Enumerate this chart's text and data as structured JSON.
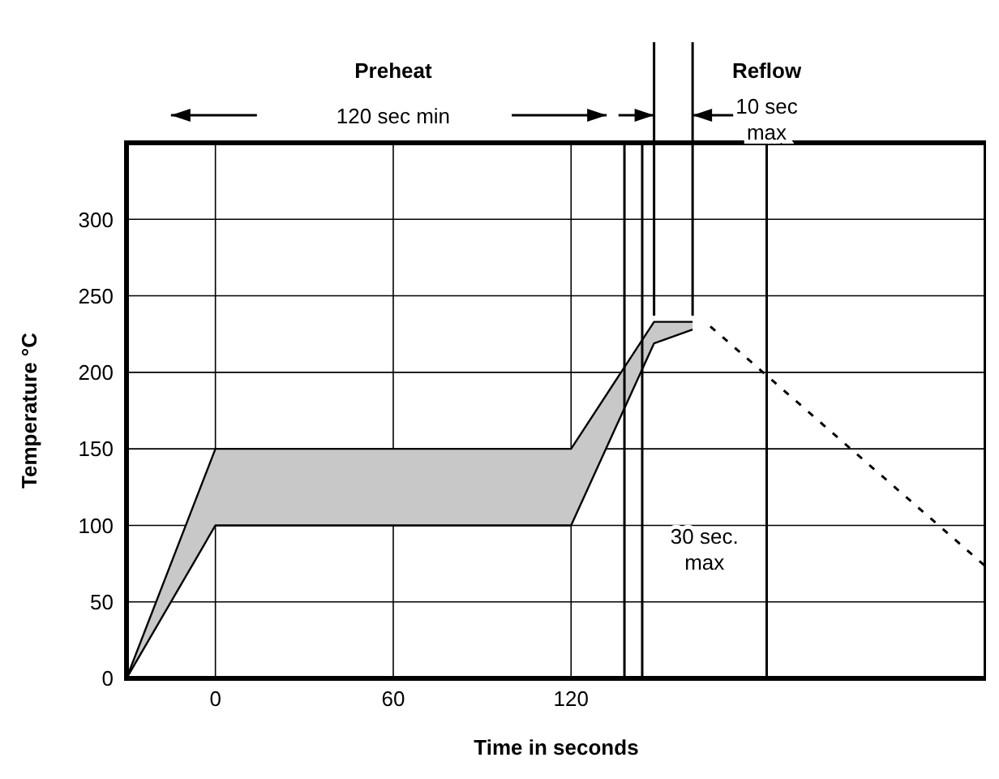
{
  "chart_data": {
    "type": "line",
    "xlabel": "Time in seconds",
    "ylabel": "Temperature °C",
    "annotations": [
      "Preheat",
      "120 sec min",
      "Reflow",
      "10 sec max",
      "30 sec. max"
    ],
    "series": [
      {
        "type": "line",
        "color": "#000000",
        "x": [
          -30,
          0,
          120,
          148,
          161
        ],
        "values": [
          0,
          100,
          100,
          219,
          228
        ]
      },
      {
        "color": "#000000",
        "x": [
          -30,
          0,
          120,
          148,
          161
        ],
        "values": [
          0,
          150,
          150,
          233,
          233
        ],
        "lower": [
          0,
          100,
          100,
          219,
          228
        ],
        "upper": [
          0,
          150,
          150,
          233,
          233
        ]
      },
      {
        "type": "line",
        "color": "#000000",
        "line_style": "dashed",
        "x": [
          167,
          260
        ],
        "values": [
          230,
          73
        ]
      }
    ],
    "ref_lines": [
      {
        "axis": "x",
        "value": 138
      },
      {
        "axis": "x",
        "value": 144
      },
      {
        "axis": "x",
        "value": 186
      }
    ],
    "xlim": [
      -30,
      260
    ],
    "xticks": [
      0,
      60,
      120
    ],
    "ylim": [
      0,
      350
    ],
    "yticks": [
      0,
      50,
      100,
      150,
      200,
      250,
      300
    ],
    "grid": true,
    "legend": false
  }
}
